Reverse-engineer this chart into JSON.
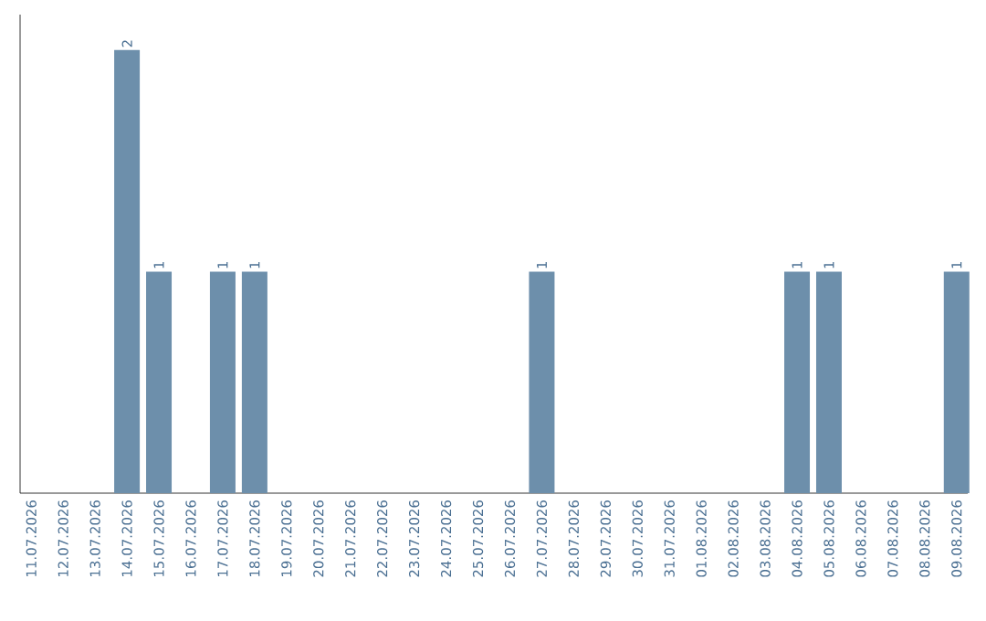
{
  "chart_data": {
    "type": "bar",
    "categories": [
      "11.07.2026",
      "12.07.2026",
      "13.07.2026",
      "14.07.2026",
      "15.07.2026",
      "16.07.2026",
      "17.07.2026",
      "18.07.2026",
      "19.07.2026",
      "20.07.2026",
      "21.07.2026",
      "22.07.2026",
      "23.07.2026",
      "24.07.2026",
      "25.07.2026",
      "26.07.2026",
      "27.07.2026",
      "28.07.2026",
      "29.07.2026",
      "30.07.2026",
      "31.07.2026",
      "01.08.2026",
      "02.08.2026",
      "03.08.2026",
      "04.08.2026",
      "05.08.2026",
      "06.08.2026",
      "07.08.2026",
      "08.08.2026",
      "09.08.2026"
    ],
    "values": [
      0,
      0,
      0,
      2,
      1,
      0,
      1,
      1,
      0,
      0,
      0,
      0,
      0,
      0,
      0,
      0,
      1,
      0,
      0,
      0,
      0,
      0,
      0,
      0,
      1,
      1,
      0,
      0,
      0,
      1
    ],
    "value_labels": [
      null,
      null,
      null,
      "2",
      "1",
      null,
      "1",
      "1",
      null,
      null,
      null,
      null,
      null,
      null,
      null,
      null,
      "1",
      null,
      null,
      null,
      null,
      null,
      null,
      null,
      "1",
      "1",
      null,
      null,
      null,
      "1"
    ],
    "color": "#6d8fab",
    "tick_labels": "x"
  }
}
